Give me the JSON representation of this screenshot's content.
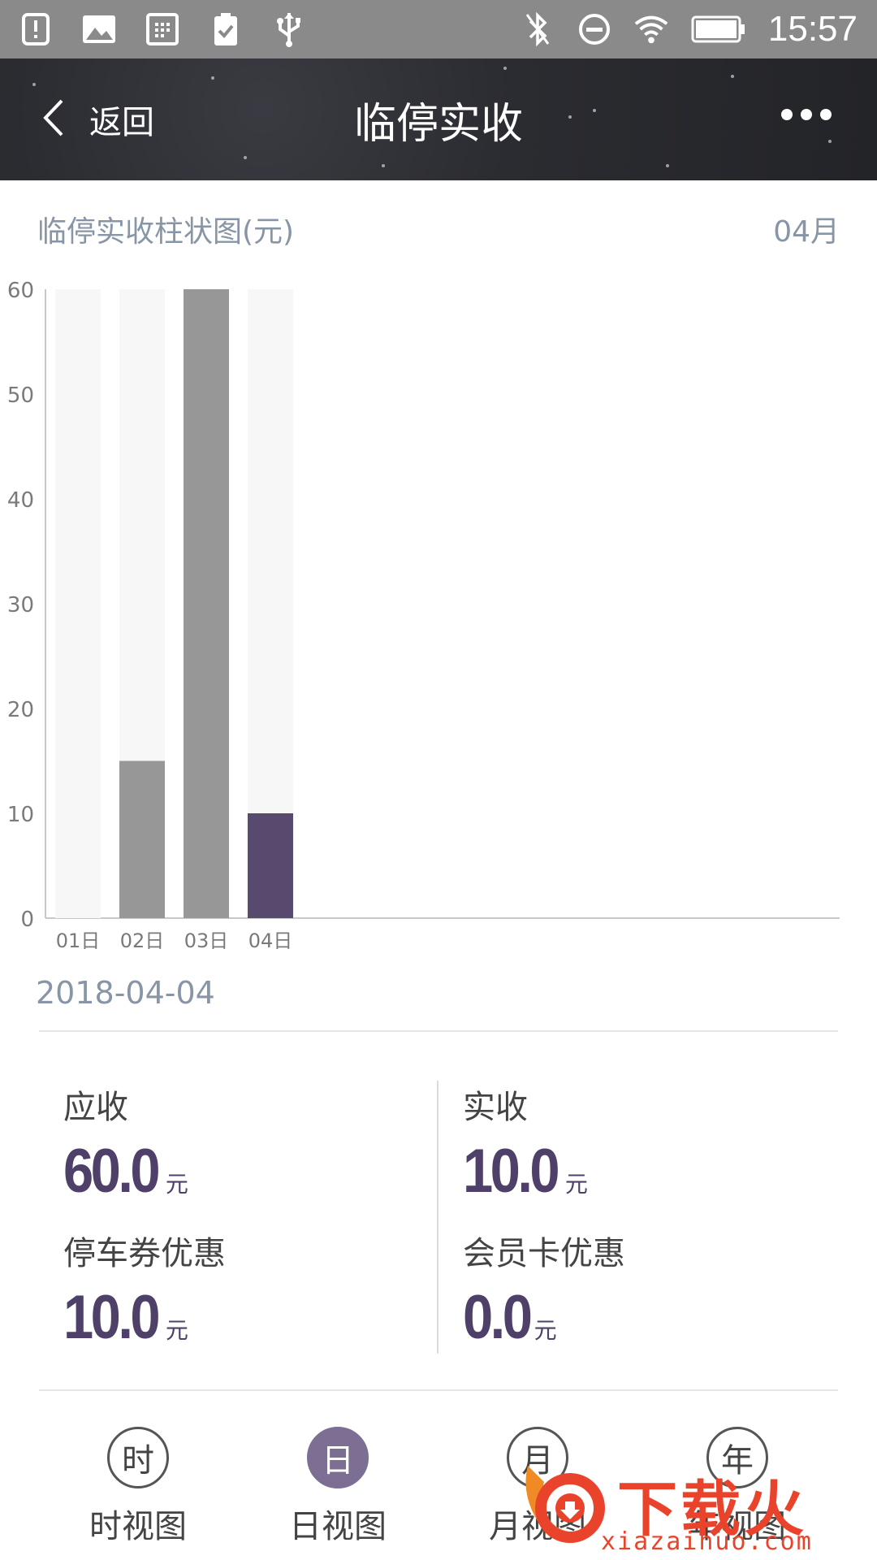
{
  "status_bar": {
    "time": "15:57",
    "left_icons": [
      "alert-icon",
      "image-icon",
      "calendar-icon",
      "clipboard-check-icon",
      "usb-icon"
    ],
    "right_icons": [
      "bluetooth-off-icon",
      "do-not-disturb-icon",
      "wifi-icon",
      "battery-icon"
    ]
  },
  "nav": {
    "back_label": "返回",
    "title": "临停实收"
  },
  "chart_header": {
    "title": "临停实收柱状图(元)",
    "month": "04月"
  },
  "chart_data": {
    "type": "bar",
    "categories": [
      "01日",
      "02日",
      "03日",
      "04日"
    ],
    "values": [
      0,
      15,
      60,
      10
    ],
    "ylim": [
      0,
      60
    ],
    "yticks": [
      0,
      10,
      20,
      30,
      40,
      50,
      60
    ],
    "selected_index": 3,
    "colors": {
      "bar": "#979797",
      "selected": "#584a6e",
      "background_bar": "#f7f7f7",
      "axis": "#c8c8c8",
      "tick_label": "#7a7a7a"
    }
  },
  "selected_date": "2018-04-04",
  "summary": {
    "receivable": {
      "label": "应收",
      "value": "60.0",
      "unit": "元"
    },
    "received": {
      "label": "实收",
      "value": "10.0",
      "unit": "元"
    },
    "coupon_discount": {
      "label": "停车券优惠",
      "value": "10.0",
      "unit": "元"
    },
    "member_discount": {
      "label": "会员卡优惠",
      "value": "0.0",
      "unit": "元"
    }
  },
  "tabs": [
    {
      "icon_char": "时",
      "label": "时视图",
      "active": false
    },
    {
      "icon_char": "日",
      "label": "日视图",
      "active": true
    },
    {
      "icon_char": "月",
      "label": "月视图",
      "active": false
    },
    {
      "icon_char": "年",
      "label": "年视图",
      "active": false
    }
  ],
  "watermark": {
    "text": "下载火",
    "url": "xiazaihuo.com"
  }
}
